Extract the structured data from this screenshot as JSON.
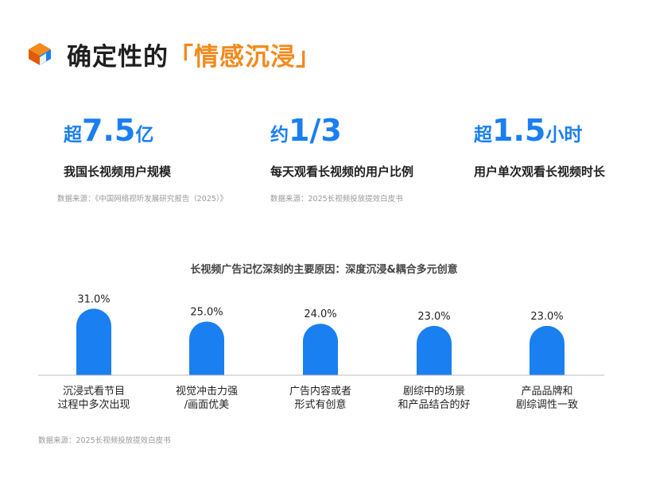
{
  "header": {
    "title_prefix": "确定性的",
    "title_highlight": "「情感沉浸」",
    "logo": "layered-stack-logo"
  },
  "stats": [
    {
      "prefix": "超",
      "value": "7.5",
      "suffix": "亿",
      "label": "我国长视频用户规模"
    },
    {
      "prefix": "约",
      "value": "1/3",
      "suffix": "",
      "label": "每天观看长视频的用户比例"
    },
    {
      "prefix": "超",
      "value": "1.5",
      "suffix": "小时",
      "label": "用户单次观看长视频时长"
    }
  ],
  "sources": {
    "s1": "数据来源：《中国网络视听发展研究报告（2025）》",
    "s2": "数据来源：2025长视频投放提效白皮书",
    "s3": "数据来源：2025长视频投放提效白皮书"
  },
  "colors": {
    "accent": "#1a7ff0",
    "highlight": "#f28a1c"
  },
  "chart_data": {
    "type": "bar",
    "title": "长视频广告记忆深刻的主要原因：深度沉浸&耦合多元创意",
    "categories": [
      [
        "沉浸式看节目",
        "过程中多次出现"
      ],
      [
        "视觉冲击力强",
        "/画面优美"
      ],
      [
        "广告内容或者",
        "形式有创意"
      ],
      [
        "剧综中的场景",
        "和产品结合的好"
      ],
      [
        "产品品牌和",
        "剧综调性一致"
      ]
    ],
    "values": [
      31.0,
      25.0,
      24.0,
      23.0,
      23.0
    ],
    "value_labels": [
      "31.0%",
      "25.0%",
      "24.0%",
      "23.0%",
      "23.0%"
    ],
    "unit": "%",
    "bar_color": "#1a7ff0",
    "grid": false,
    "legend": "none"
  }
}
